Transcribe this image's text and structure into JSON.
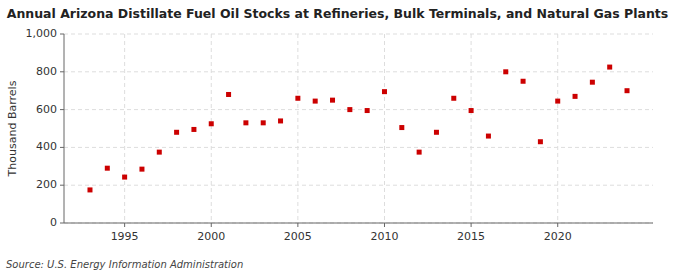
{
  "chart_data": {
    "type": "scatter",
    "title": "Annual Arizona Distillate Fuel Oil Stocks at Refineries, Bulk Terminals, and Natural Gas Plants",
    "ylabel": "Thousand Barrels",
    "source": "Source: U.S. Energy Information Administration",
    "x": [
      1993,
      1994,
      1995,
      1996,
      1997,
      1998,
      1999,
      2000,
      2001,
      2002,
      2003,
      2004,
      2005,
      2006,
      2007,
      2008,
      2009,
      2010,
      2011,
      2012,
      2013,
      2014,
      2015,
      2016,
      2017,
      2018,
      2019,
      2020,
      2021,
      2022,
      2023,
      2024
    ],
    "values": [
      175,
      290,
      243,
      285,
      375,
      480,
      495,
      525,
      680,
      530,
      530,
      540,
      660,
      645,
      650,
      600,
      595,
      695,
      505,
      375,
      480,
      660,
      595,
      460,
      800,
      750,
      430,
      645,
      670,
      745,
      825,
      700
    ],
    "color": "#cc0000",
    "marker": "square",
    "xlim": [
      1991.5,
      2025.5
    ],
    "xticks": [
      1995,
      2000,
      2005,
      2010,
      2015,
      2020
    ],
    "ylim": [
      0,
      1000
    ],
    "yticks": [
      0,
      200,
      400,
      600,
      800,
      {
        "value": 1000,
        "label": "1,000"
      }
    ],
    "grid": true
  }
}
